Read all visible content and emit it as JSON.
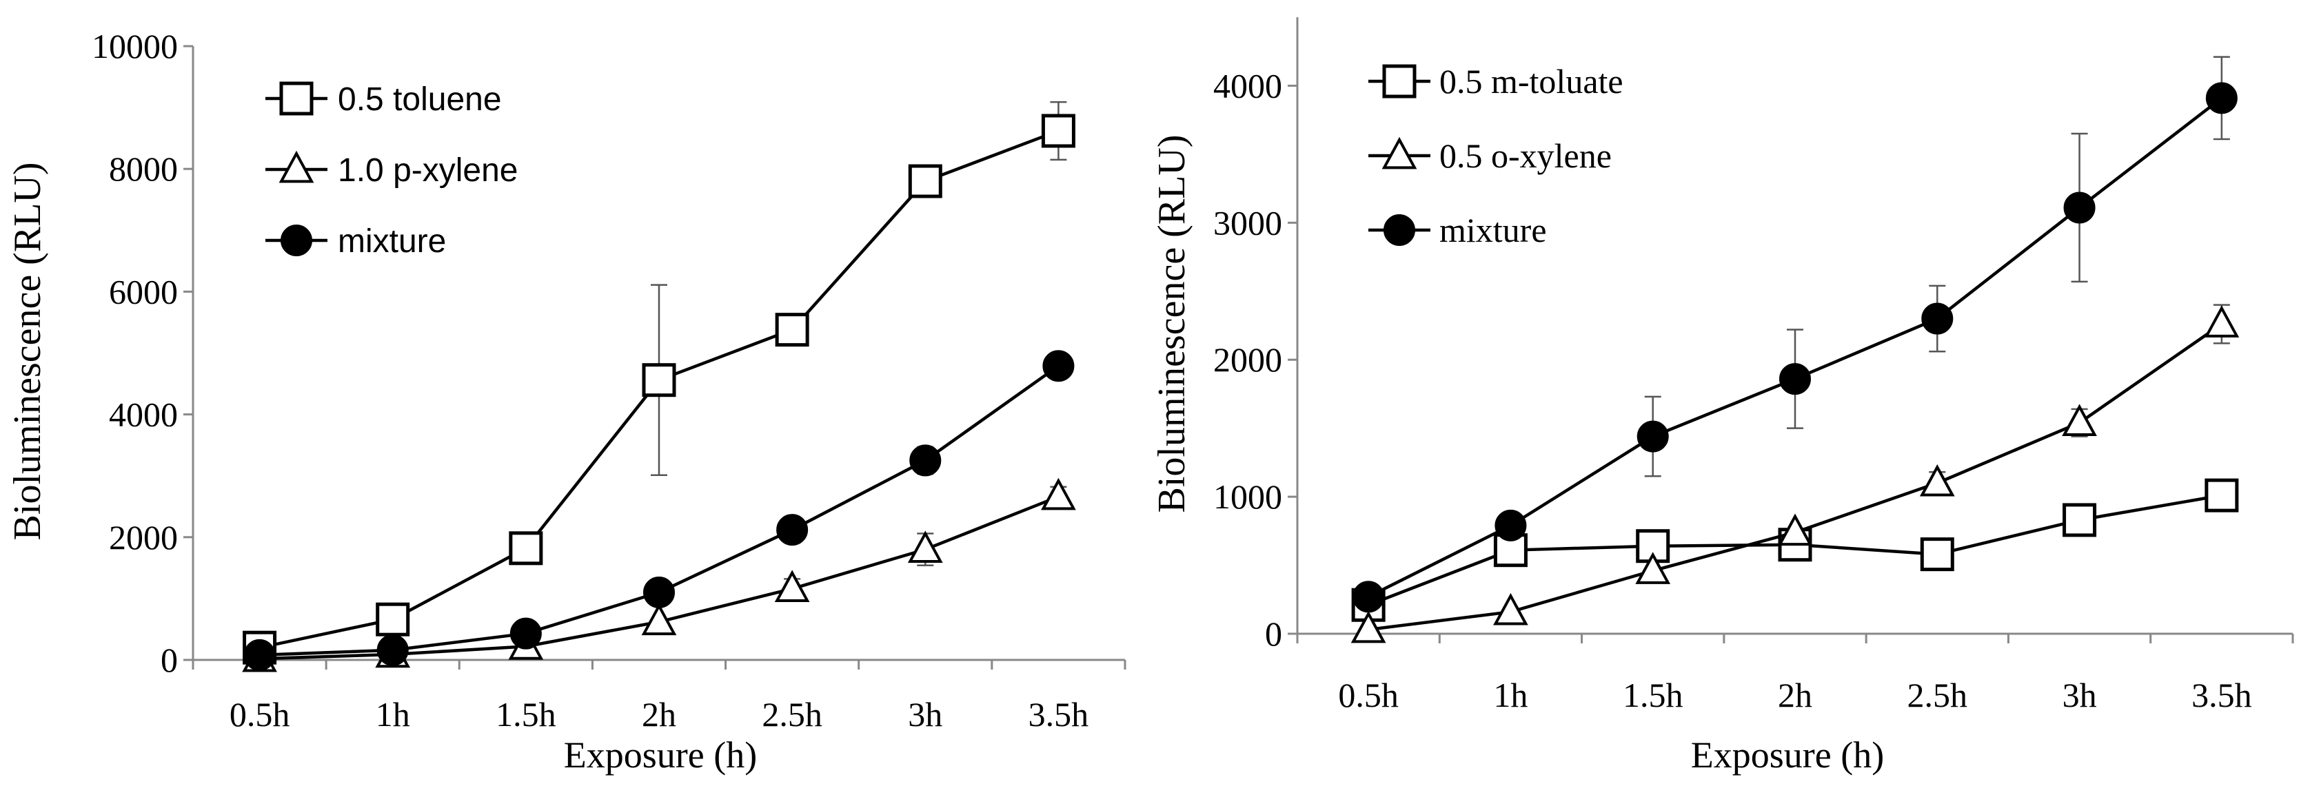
{
  "chart_data": [
    {
      "type": "line",
      "title": "",
      "xlabel": "Exposure (h)",
      "ylabel": "Bioluminescence (RLU)",
      "categories": [
        "0.5h",
        "1h",
        "1.5h",
        "2h",
        "2.5h",
        "3h",
        "3.5h"
      ],
      "ylim": [
        0,
        10000
      ],
      "yticks": [
        0,
        2000,
        4000,
        6000,
        8000,
        10000
      ],
      "legend_position": "top-left",
      "series": [
        {
          "name": "0.5 toluene",
          "marker": "open-square",
          "values": [
            200,
            660,
            1820,
            4560,
            5380,
            7800,
            8620
          ],
          "errors": [
            0,
            0,
            0,
            1550,
            0,
            0,
            470
          ]
        },
        {
          "name": "1.0 p-xylene",
          "marker": "open-triangle",
          "values": [
            20,
            90,
            220,
            620,
            1160,
            1800,
            2660
          ],
          "errors": [
            0,
            0,
            0,
            0,
            160,
            260,
            160
          ]
        },
        {
          "name": "mixture",
          "marker": "filled-circle",
          "values": [
            80,
            160,
            430,
            1100,
            2120,
            3250,
            4790
          ],
          "errors": [
            0,
            0,
            0,
            0,
            0,
            220,
            0
          ]
        }
      ]
    },
    {
      "type": "line",
      "title": "",
      "xlabel": "Exposure (h)",
      "ylabel": "Bioluminescence (RLU)",
      "categories": [
        "0.5h",
        "1h",
        "1.5h",
        "2h",
        "2.5h",
        "3h",
        "3.5h"
      ],
      "ylim": [
        0,
        4500
      ],
      "yticks": [
        0,
        1000,
        2000,
        3000,
        4000
      ],
      "legend_position": "top-left",
      "series": [
        {
          "name": "0.5 m-toluate",
          "marker": "open-square",
          "values": [
            210,
            610,
            640,
            650,
            580,
            830,
            1010
          ],
          "errors": [
            0,
            0,
            60,
            60,
            80,
            0,
            0
          ]
        },
        {
          "name": "0.5 o-xylene",
          "marker": "open-triangle",
          "values": [
            30,
            160,
            460,
            740,
            1100,
            1540,
            2260
          ],
          "errors": [
            0,
            0,
            0,
            0,
            80,
            100,
            140
          ]
        },
        {
          "name": "mixture",
          "marker": "filled-circle",
          "values": [
            270,
            790,
            1440,
            1860,
            2300,
            3110,
            3910
          ],
          "errors": [
            0,
            60,
            290,
            360,
            240,
            540,
            300
          ]
        }
      ]
    }
  ]
}
